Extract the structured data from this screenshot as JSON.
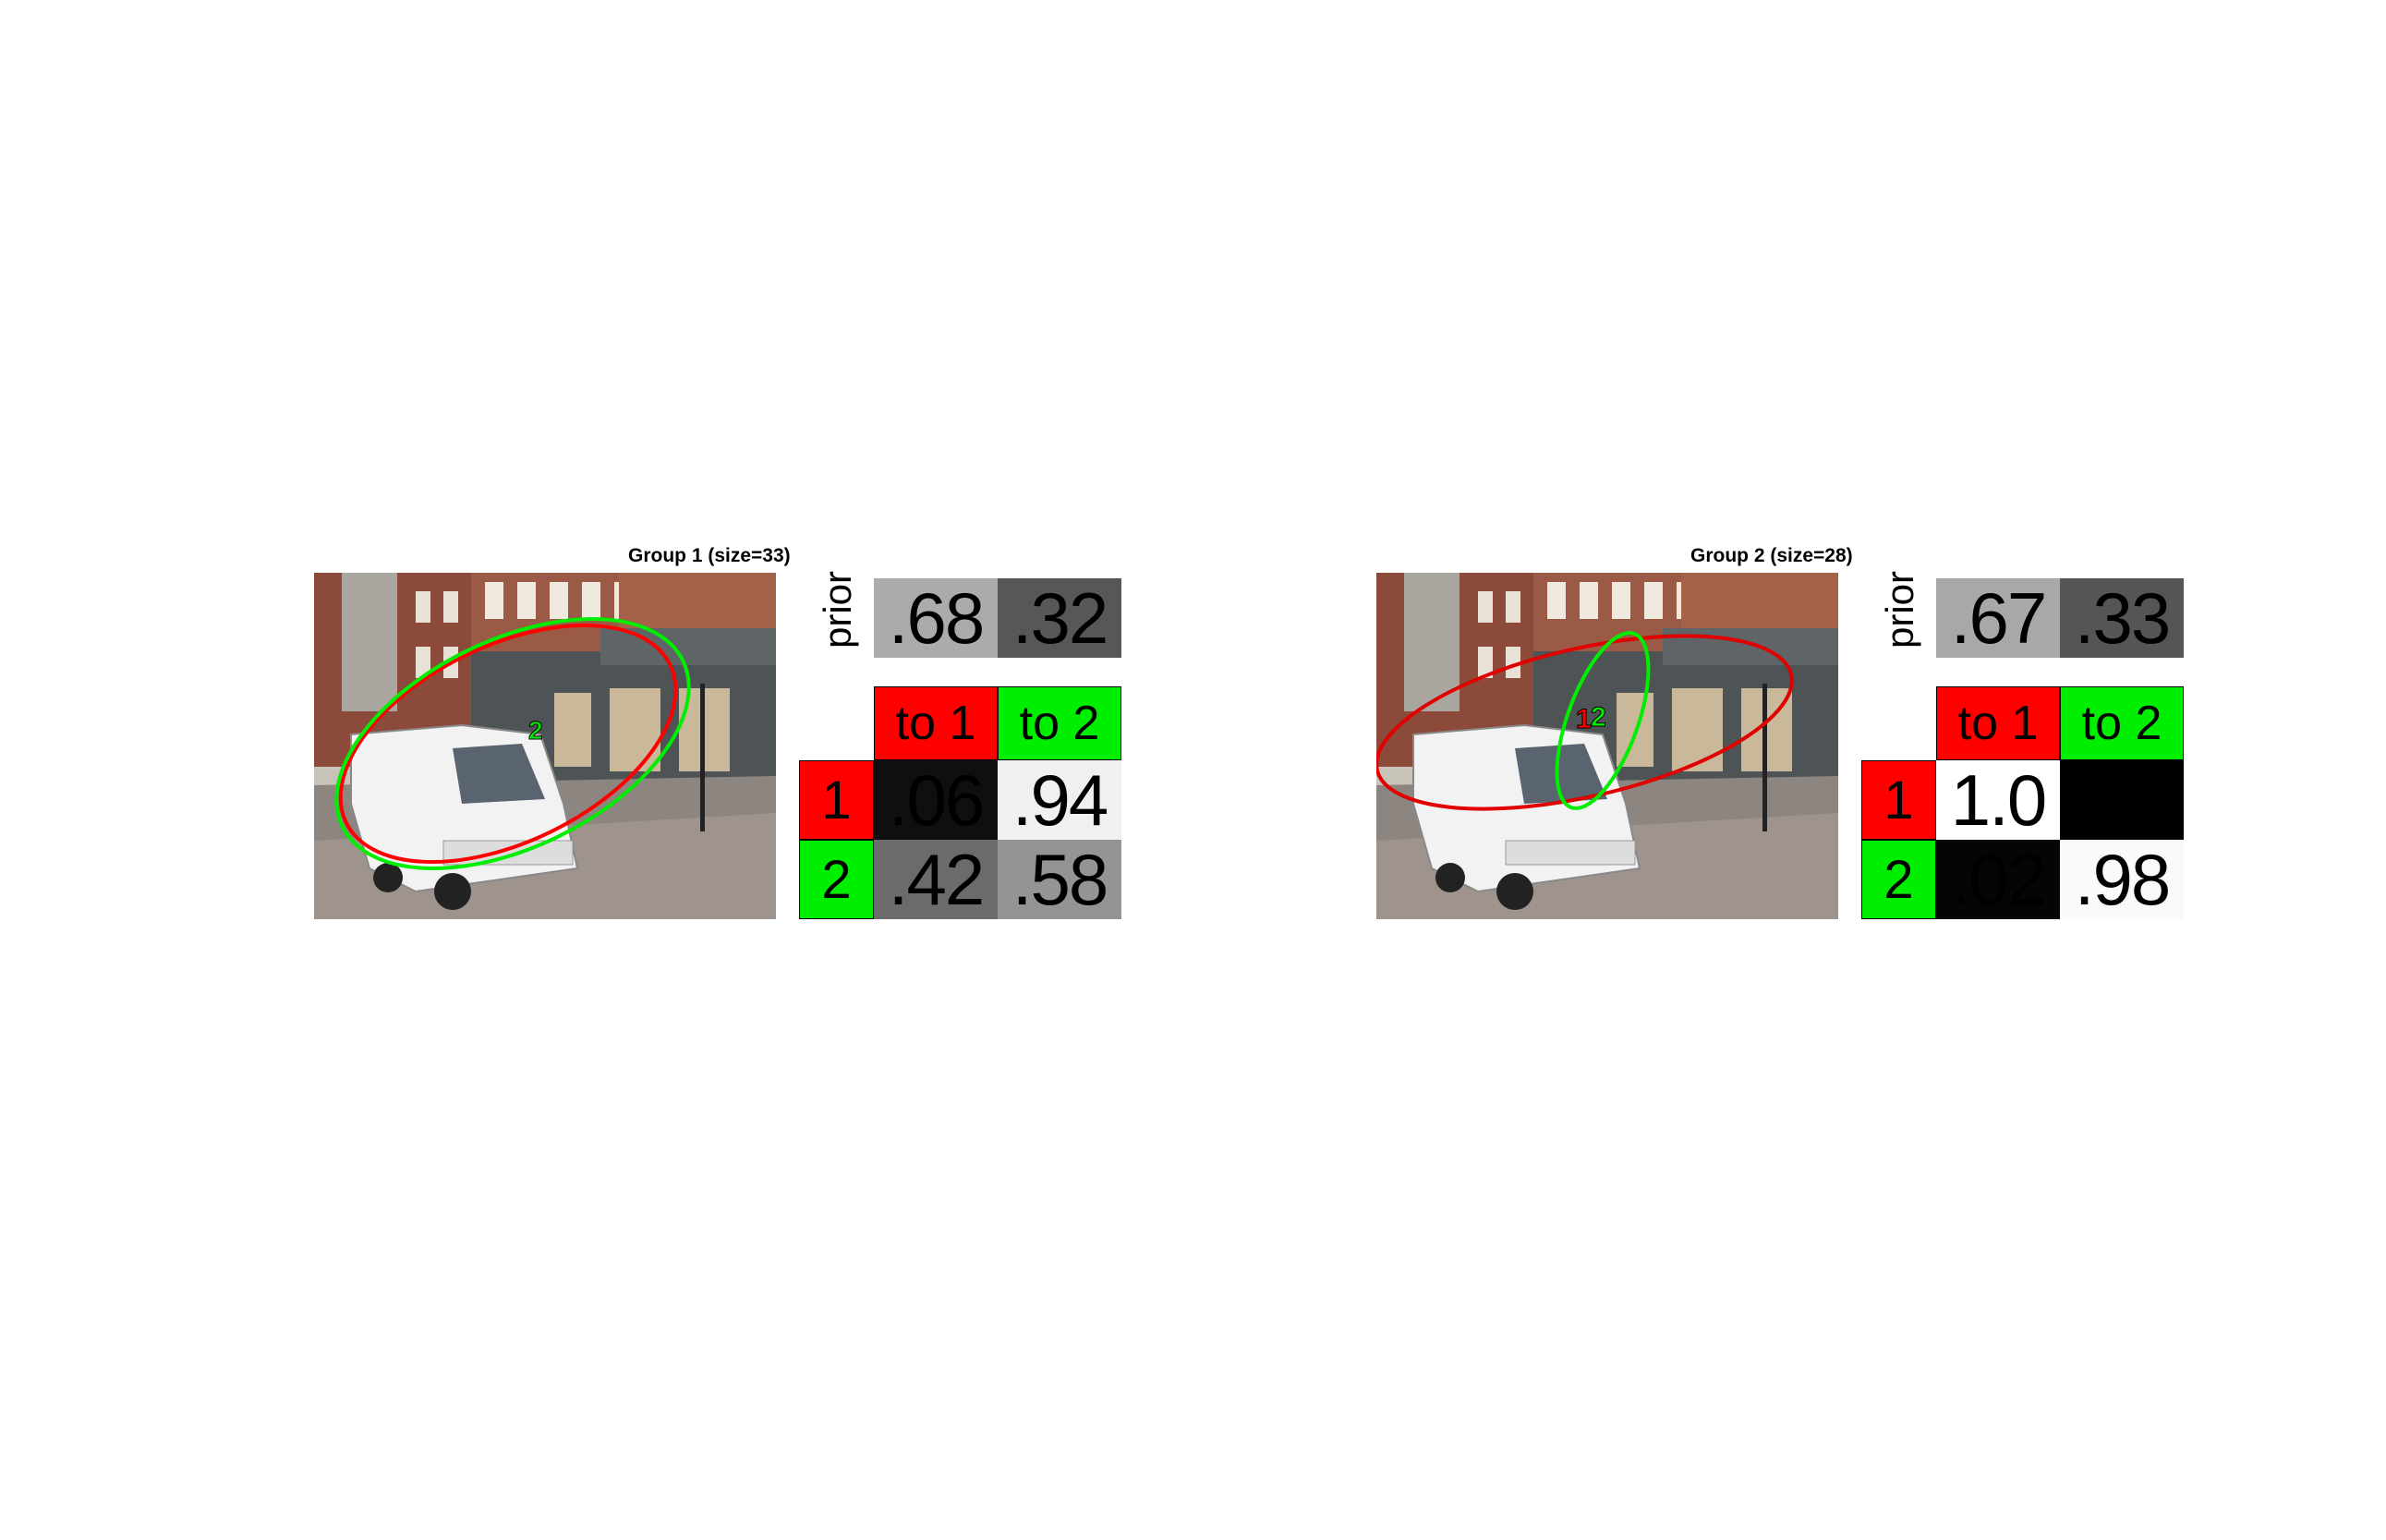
{
  "colors": {
    "red": "#ff0000",
    "green": "#00ee00"
  },
  "panels": [
    {
      "title": "Group 1 (size=33)",
      "prior_label": "prior",
      "prior": [
        ".68",
        ".32"
      ],
      "prior_values": [
        0.68,
        0.32
      ],
      "col_headers": [
        "to 1",
        "to 2"
      ],
      "row_labels": [
        "1",
        "2"
      ],
      "matrix": [
        [
          ".06",
          ".94"
        ],
        [
          ".42",
          ".58"
        ]
      ],
      "matrix_values": [
        [
          0.06,
          0.94
        ],
        [
          0.42,
          0.58
        ]
      ],
      "ellipse_labels": [
        "2"
      ]
    },
    {
      "title": "Group 2 (size=28)",
      "prior_label": "prior",
      "prior": [
        ".67",
        ".33"
      ],
      "prior_values": [
        0.67,
        0.33
      ],
      "col_headers": [
        "to 1",
        "to 2"
      ],
      "row_labels": [
        "1",
        "2"
      ],
      "matrix": [
        [
          "1.0",
          ""
        ],
        [
          ".02",
          ".98"
        ]
      ],
      "matrix_values": [
        [
          1.0,
          0.0
        ],
        [
          0.02,
          0.98
        ]
      ],
      "ellipse_labels": [
        "1",
        "2"
      ]
    }
  ]
}
